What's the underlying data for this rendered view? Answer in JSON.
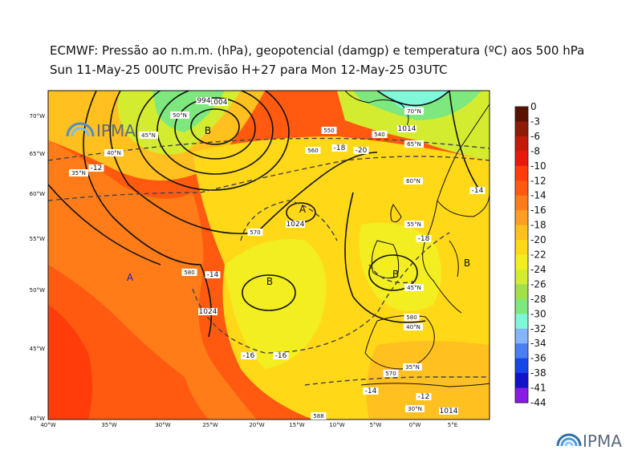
{
  "title_line1": "ECMWF:  Pressão ao n.m.m. (hPa), geopotencial (damgp) e temperatura (ºC) aos 500 hPa",
  "title_line2": "Sun 11-May-25 00UTC Previsão H+27 para Mon 12-May-25 03UTC",
  "logo_text": "IPMA",
  "colorbar": {
    "labels": [
      "0",
      "-3",
      "-6",
      "-8",
      "-10",
      "-12",
      "-14",
      "-16",
      "-18",
      "-20",
      "-22",
      "-24",
      "-26",
      "-28",
      "-30",
      "-32",
      "-34",
      "-36",
      "-38",
      "-41",
      "-44"
    ],
    "colors": [
      "#5a1200",
      "#8f1a08",
      "#c41a0a",
      "#e8180c",
      "#ff3c0a",
      "#ff5a10",
      "#ff7c18",
      "#ff9e22",
      "#ffc020",
      "#ffd818",
      "#f2ee20",
      "#d4ec30",
      "#a2e048",
      "#7ee87e",
      "#7ef8d8",
      "#86b4f8",
      "#4a7ef2",
      "#1646e6",
      "#1212c8",
      "#8a1ae6",
      "#e620f0"
    ]
  },
  "lon_labels": [
    "40°W",
    "35°W",
    "30°W",
    "25°W",
    "20°W",
    "15°W",
    "10°W",
    "5°W",
    "0°W",
    "5°E"
  ],
  "lat_labels": [
    "70°W",
    "65°W",
    "60°W",
    "55°W",
    "50°W",
    "45°W",
    "40°W"
  ],
  "inmap_labels": [
    "50°N",
    "45°N",
    "40°N",
    "35°N",
    "30°N",
    "55°N",
    "60°N",
    "65°N",
    "70°N",
    "40°N",
    "35°N",
    "45°N"
  ],
  "pressure_labels": [
    "1004",
    "1024",
    "1024",
    "1014",
    "1014",
    "994"
  ],
  "temp_labels": [
    "-18",
    "-16",
    "-14",
    "-14",
    "-12",
    "-16",
    "-18",
    "-20",
    "-12",
    "-14"
  ],
  "geo_labels": [
    "540",
    "550",
    "560",
    "570",
    "570",
    "580",
    "580",
    "588"
  ],
  "centers": [
    "B",
    "B",
    "B",
    "B",
    "A",
    "A"
  ]
}
